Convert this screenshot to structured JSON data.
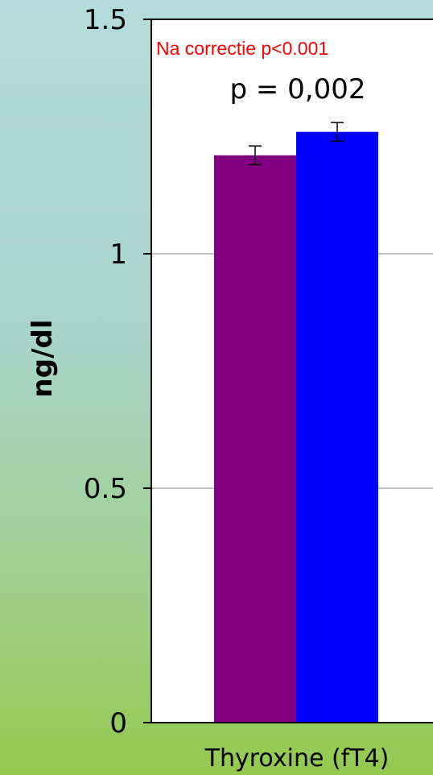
{
  "chart_data": {
    "type": "bar",
    "ylabel": "ng/dl",
    "categories": [
      "Thyroxine (fT4)"
    ],
    "ylim": [
      0,
      1.5
    ],
    "yticks": [
      "0",
      "0.5",
      "1",
      "1.5"
    ],
    "grid": true,
    "series": [
      {
        "values": [
          1.21
        ],
        "error": [
          0.02
        ],
        "color": "#800080"
      },
      {
        "values": [
          1.26
        ],
        "error": [
          0.02
        ],
        "color": "#0000ff"
      }
    ],
    "annotations": [
      "Na correctie p<0.001",
      "p = 0,002"
    ]
  }
}
